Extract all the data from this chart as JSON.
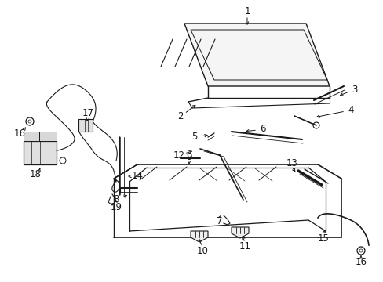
{
  "bg_color": "#ffffff",
  "line_color": "#1a1a1a",
  "label_color": "#1a1a1a",
  "figsize": [
    4.89,
    3.6
  ],
  "dpi": 100
}
